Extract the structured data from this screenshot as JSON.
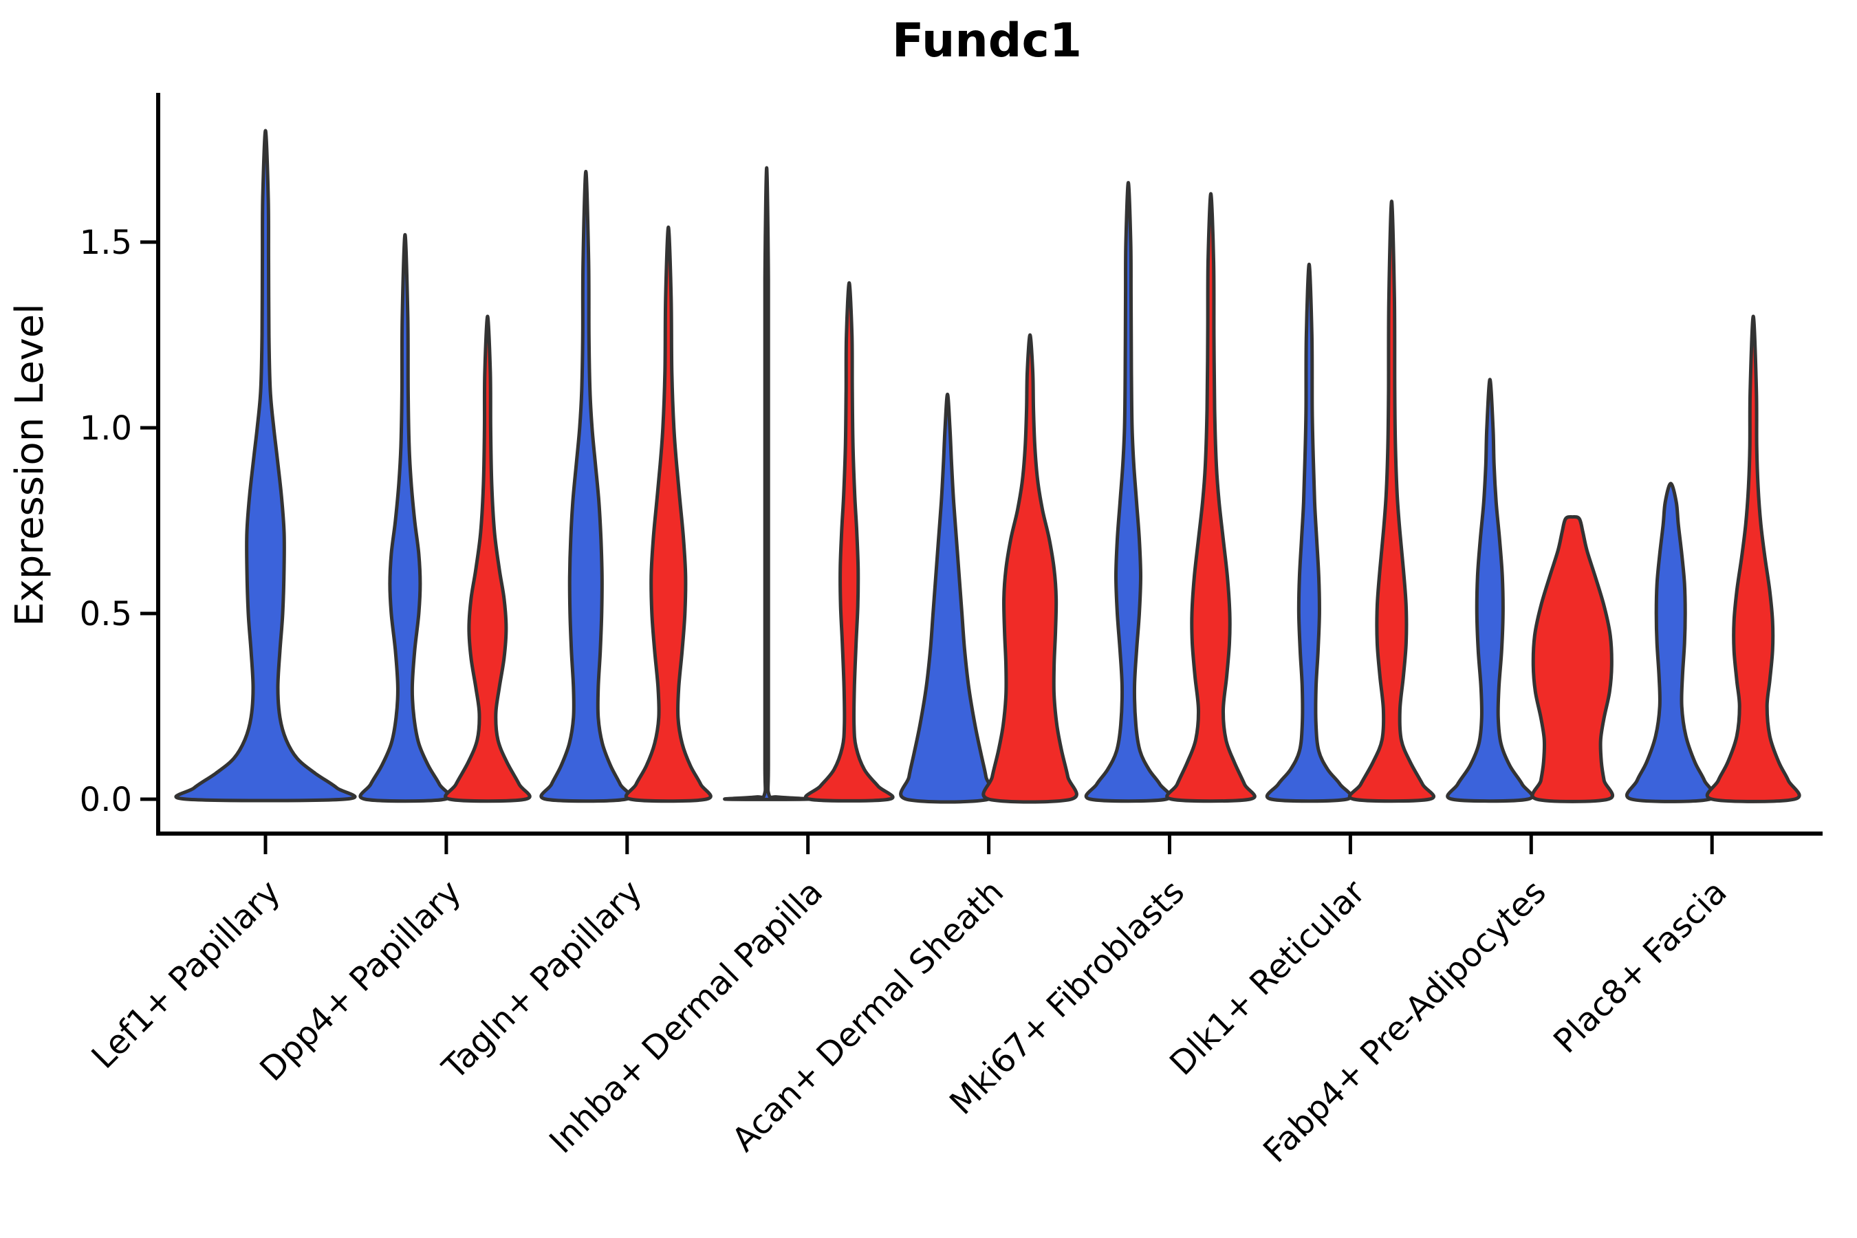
{
  "chart_data": {
    "type": "violin",
    "title": "Fundc1",
    "ylabel": "Expression Level",
    "xlabel": "",
    "yticks": [
      0.0,
      0.5,
      1.0,
      1.5
    ],
    "ytick_labels": [
      "0.0",
      "0.5",
      "1.0",
      "1.5"
    ],
    "ylim": [
      0,
      1.9
    ],
    "grid": false,
    "legend": "none",
    "categories": [
      "Lef1+ Papillary",
      "Dpp4+ Papillary",
      "Tagln+ Papillary",
      "Inhba+ Dermal Papilla",
      "Acan+ Dermal Sheath",
      "Mki67+ Fibroblasts",
      "Dlk1+ Reticular",
      "Fabp4+ Pre-Adipocytes",
      "Plac8+ Fascia"
    ],
    "split_colors": {
      "blue": "#3B63DB",
      "red": "#F02B27"
    },
    "outline_color": "#333333",
    "violins": [
      {
        "category": "Lef1+ Papillary",
        "cat_index": 0,
        "side": "full",
        "color": "blue",
        "max_expression": 1.8,
        "profile": [
          [
            0,
            115
          ],
          [
            0.03,
            104
          ],
          [
            0.07,
            72
          ],
          [
            0.11,
            46
          ],
          [
            0.16,
            30
          ],
          [
            0.22,
            21
          ],
          [
            0.3,
            18
          ],
          [
            0.4,
            21
          ],
          [
            0.5,
            25
          ],
          [
            0.62,
            27
          ],
          [
            0.72,
            27
          ],
          [
            0.82,
            23
          ],
          [
            0.92,
            17
          ],
          [
            1.0,
            12
          ],
          [
            1.1,
            7
          ],
          [
            1.25,
            5
          ],
          [
            1.45,
            4.5
          ],
          [
            1.62,
            4
          ],
          [
            1.8,
            0
          ]
        ]
      },
      {
        "category": "Dpp4+ Papillary",
        "cat_index": 1,
        "side": "left",
        "color": "blue",
        "max_expression": 1.52,
        "profile": [
          [
            0,
            58
          ],
          [
            0.04,
            50
          ],
          [
            0.09,
            34
          ],
          [
            0.15,
            20
          ],
          [
            0.22,
            13
          ],
          [
            0.3,
            10.5
          ],
          [
            0.4,
            14
          ],
          [
            0.5,
            20
          ],
          [
            0.58,
            22
          ],
          [
            0.66,
            20
          ],
          [
            0.75,
            14
          ],
          [
            0.85,
            9
          ],
          [
            0.95,
            6
          ],
          [
            1.1,
            4.5
          ],
          [
            1.3,
            4
          ],
          [
            1.52,
            0
          ]
        ]
      },
      {
        "category": "Dpp4+ Papillary",
        "cat_index": 1,
        "side": "right",
        "color": "red",
        "max_expression": 1.3,
        "profile": [
          [
            0,
            55
          ],
          [
            0.04,
            46
          ],
          [
            0.1,
            28
          ],
          [
            0.16,
            15
          ],
          [
            0.23,
            12
          ],
          [
            0.3,
            17
          ],
          [
            0.38,
            24
          ],
          [
            0.46,
            27
          ],
          [
            0.54,
            24
          ],
          [
            0.62,
            17
          ],
          [
            0.72,
            10
          ],
          [
            0.85,
            6
          ],
          [
            1.0,
            4.5
          ],
          [
            1.15,
            4
          ],
          [
            1.3,
            0
          ]
        ]
      },
      {
        "category": "Tagln+ Papillary",
        "cat_index": 2,
        "side": "left",
        "color": "blue",
        "max_expression": 1.69,
        "profile": [
          [
            0,
            58
          ],
          [
            0.04,
            50
          ],
          [
            0.09,
            36
          ],
          [
            0.15,
            24
          ],
          [
            0.22,
            18
          ],
          [
            0.3,
            18
          ],
          [
            0.4,
            21
          ],
          [
            0.5,
            23
          ],
          [
            0.6,
            23.5
          ],
          [
            0.7,
            22
          ],
          [
            0.8,
            19
          ],
          [
            0.9,
            14
          ],
          [
            1.0,
            9
          ],
          [
            1.1,
            6
          ],
          [
            1.25,
            4.5
          ],
          [
            1.45,
            4
          ],
          [
            1.69,
            0
          ]
        ]
      },
      {
        "category": "Tagln+ Papillary",
        "cat_index": 2,
        "side": "right",
        "color": "red",
        "max_expression": 1.54,
        "profile": [
          [
            0,
            55
          ],
          [
            0.04,
            47
          ],
          [
            0.09,
            32
          ],
          [
            0.15,
            20
          ],
          [
            0.22,
            14
          ],
          [
            0.3,
            15
          ],
          [
            0.4,
            20
          ],
          [
            0.5,
            24
          ],
          [
            0.6,
            25
          ],
          [
            0.7,
            22
          ],
          [
            0.8,
            17
          ],
          [
            0.9,
            12
          ],
          [
            1.0,
            8
          ],
          [
            1.15,
            5
          ],
          [
            1.35,
            4
          ],
          [
            1.54,
            0
          ]
        ]
      },
      {
        "category": "Inhba+ Dermal Papilla",
        "cat_index": 3,
        "side": "left",
        "color": "blue",
        "max_expression": 1.7,
        "profile": [
          [
            0,
            59
          ],
          [
            0.006,
            16
          ],
          [
            0.014,
            3
          ],
          [
            0.1,
            2.5
          ],
          [
            0.5,
            2.5
          ],
          [
            1.0,
            2.5
          ],
          [
            1.4,
            2.5
          ],
          [
            1.7,
            0
          ]
        ]
      },
      {
        "category": "Inhba+ Dermal Papilla",
        "cat_index": 3,
        "side": "right",
        "color": "red",
        "max_expression": 1.39,
        "profile": [
          [
            0,
            58
          ],
          [
            0.035,
            42
          ],
          [
            0.08,
            22
          ],
          [
            0.14,
            10
          ],
          [
            0.2,
            7
          ],
          [
            0.3,
            7.5
          ],
          [
            0.42,
            10
          ],
          [
            0.52,
            12.5
          ],
          [
            0.62,
            13
          ],
          [
            0.72,
            11
          ],
          [
            0.82,
            8
          ],
          [
            0.95,
            5.5
          ],
          [
            1.1,
            4.5
          ],
          [
            1.25,
            4
          ],
          [
            1.39,
            0
          ]
        ]
      },
      {
        "category": "Acan+ Dermal Sheath",
        "cat_index": 4,
        "side": "left",
        "color": "blue",
        "max_expression": 1.09,
        "profile": [
          [
            0,
            60
          ],
          [
            0.06,
            56
          ],
          [
            0.12,
            49
          ],
          [
            0.2,
            40
          ],
          [
            0.3,
            31
          ],
          [
            0.4,
            25
          ],
          [
            0.5,
            21
          ],
          [
            0.6,
            17
          ],
          [
            0.7,
            13
          ],
          [
            0.8,
            9
          ],
          [
            0.9,
            6
          ],
          [
            1.0,
            3.5
          ],
          [
            1.09,
            0
          ]
        ]
      },
      {
        "category": "Acan+ Dermal Sheath",
        "cat_index": 4,
        "side": "right",
        "color": "red",
        "max_expression": 1.25,
        "profile": [
          [
            0,
            60
          ],
          [
            0.06,
            55
          ],
          [
            0.13,
            46
          ],
          [
            0.2,
            39
          ],
          [
            0.28,
            35
          ],
          [
            0.36,
            35
          ],
          [
            0.45,
            37
          ],
          [
            0.54,
            38
          ],
          [
            0.62,
            35
          ],
          [
            0.7,
            28
          ],
          [
            0.78,
            18
          ],
          [
            0.86,
            11
          ],
          [
            0.95,
            7
          ],
          [
            1.05,
            5
          ],
          [
            1.15,
            4
          ],
          [
            1.25,
            0
          ]
        ]
      },
      {
        "category": "Mki67+ Fibroblasts",
        "cat_index": 5,
        "side": "left",
        "color": "blue",
        "max_expression": 1.66,
        "profile": [
          [
            0,
            55
          ],
          [
            0.04,
            46
          ],
          [
            0.08,
            30
          ],
          [
            0.13,
            17
          ],
          [
            0.2,
            11
          ],
          [
            0.3,
            9
          ],
          [
            0.4,
            12
          ],
          [
            0.5,
            16
          ],
          [
            0.6,
            18
          ],
          [
            0.7,
            16
          ],
          [
            0.8,
            12
          ],
          [
            0.9,
            8
          ],
          [
            1.0,
            5.5
          ],
          [
            1.15,
            4.5
          ],
          [
            1.35,
            4
          ],
          [
            1.5,
            3.5
          ],
          [
            1.66,
            0
          ]
        ]
      },
      {
        "category": "Mki67+ Fibroblasts",
        "cat_index": 5,
        "side": "right",
        "color": "red",
        "max_expression": 1.63,
        "profile": [
          [
            0,
            57
          ],
          [
            0.04,
            49
          ],
          [
            0.1,
            34
          ],
          [
            0.16,
            22
          ],
          [
            0.24,
            18
          ],
          [
            0.33,
            23
          ],
          [
            0.42,
            27
          ],
          [
            0.5,
            27.5
          ],
          [
            0.6,
            24
          ],
          [
            0.7,
            18
          ],
          [
            0.8,
            12
          ],
          [
            0.9,
            8
          ],
          [
            1.05,
            5.5
          ],
          [
            1.25,
            4.5
          ],
          [
            1.45,
            4
          ],
          [
            1.63,
            0
          ]
        ]
      },
      {
        "category": "Dlk1+ Reticular",
        "cat_index": 6,
        "side": "left",
        "color": "blue",
        "max_expression": 1.44,
        "profile": [
          [
            0,
            55
          ],
          [
            0.04,
            45
          ],
          [
            0.08,
            27
          ],
          [
            0.13,
            14
          ],
          [
            0.2,
            10
          ],
          [
            0.3,
            10
          ],
          [
            0.4,
            13
          ],
          [
            0.5,
            15
          ],
          [
            0.6,
            14
          ],
          [
            0.7,
            11
          ],
          [
            0.8,
            8
          ],
          [
            0.92,
            6
          ],
          [
            1.05,
            4.5
          ],
          [
            1.25,
            4
          ],
          [
            1.44,
            0
          ]
        ]
      },
      {
        "category": "Dlk1+ Reticular",
        "cat_index": 6,
        "side": "right",
        "color": "red",
        "max_expression": 1.61,
        "profile": [
          [
            0,
            55
          ],
          [
            0.04,
            45
          ],
          [
            0.1,
            27
          ],
          [
            0.16,
            14
          ],
          [
            0.24,
            12
          ],
          [
            0.33,
            17
          ],
          [
            0.42,
            21
          ],
          [
            0.52,
            21
          ],
          [
            0.62,
            17
          ],
          [
            0.72,
            12
          ],
          [
            0.82,
            8
          ],
          [
            0.95,
            5.5
          ],
          [
            1.1,
            4.5
          ],
          [
            1.35,
            4
          ],
          [
            1.61,
            0
          ]
        ]
      },
      {
        "category": "Fabp4+ Pre-Adipocytes",
        "cat_index": 7,
        "side": "left",
        "color": "blue",
        "max_expression": 1.13,
        "profile": [
          [
            0,
            55
          ],
          [
            0.04,
            47
          ],
          [
            0.09,
            29
          ],
          [
            0.15,
            16
          ],
          [
            0.22,
            12
          ],
          [
            0.3,
            13
          ],
          [
            0.4,
            17
          ],
          [
            0.5,
            19
          ],
          [
            0.6,
            18
          ],
          [
            0.7,
            14
          ],
          [
            0.8,
            9
          ],
          [
            0.9,
            6
          ],
          [
            1.0,
            4.5
          ],
          [
            1.13,
            0
          ]
        ]
      },
      {
        "category": "Fabp4+ Pre-Adipocytes",
        "cat_index": 7,
        "side": "right",
        "color": "red",
        "max_expression": 0.76,
        "profile": [
          [
            0,
            52
          ],
          [
            0.05,
            46
          ],
          [
            0.1,
            42
          ],
          [
            0.16,
            41
          ],
          [
            0.22,
            46
          ],
          [
            0.29,
            54
          ],
          [
            0.36,
            57
          ],
          [
            0.44,
            55
          ],
          [
            0.52,
            46
          ],
          [
            0.6,
            33
          ],
          [
            0.67,
            21
          ],
          [
            0.72,
            15
          ],
          [
            0.755,
            10
          ],
          [
            0.76,
            0
          ]
        ]
      },
      {
        "category": "Plac8+ Fascia",
        "cat_index": 8,
        "side": "left",
        "color": "blue",
        "max_expression": 0.85,
        "profile": [
          [
            0,
            57
          ],
          [
            0.05,
            49
          ],
          [
            0.1,
            35
          ],
          [
            0.17,
            22
          ],
          [
            0.25,
            16
          ],
          [
            0.33,
            17
          ],
          [
            0.42,
            20
          ],
          [
            0.5,
            21
          ],
          [
            0.58,
            20
          ],
          [
            0.66,
            16
          ],
          [
            0.74,
            11
          ],
          [
            0.8,
            8
          ],
          [
            0.85,
            0
          ]
        ]
      },
      {
        "category": "Plac8+ Fascia",
        "cat_index": 8,
        "side": "right",
        "color": "red",
        "max_expression": 1.3,
        "profile": [
          [
            0,
            60
          ],
          [
            0.05,
            51
          ],
          [
            0.1,
            37
          ],
          [
            0.17,
            24
          ],
          [
            0.25,
            20
          ],
          [
            0.32,
            24
          ],
          [
            0.4,
            28
          ],
          [
            0.48,
            28
          ],
          [
            0.56,
            24
          ],
          [
            0.65,
            17
          ],
          [
            0.74,
            11
          ],
          [
            0.84,
            7
          ],
          [
            0.95,
            5
          ],
          [
            1.1,
            4.5
          ],
          [
            1.3,
            0
          ]
        ]
      }
    ]
  }
}
